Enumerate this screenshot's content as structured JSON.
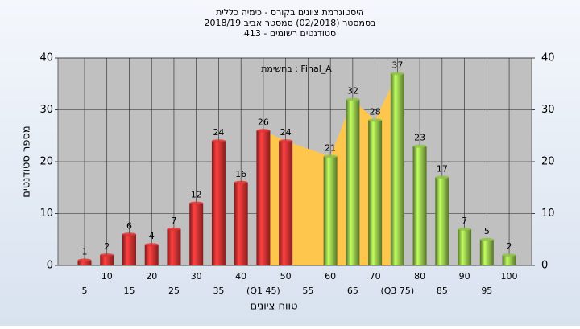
{
  "chart_data": {
    "type": "bar",
    "title": "היסטוגרמת ציונים בקורס - כימיה כללית",
    "subtitle": "בסמסטר  (02/2018)  סמסטר אביב 2018/19",
    "subtitle2": "סטודנטים רשומים - 413",
    "annotation": "בחשימת : Final_A",
    "x_label": "טווח ציונים",
    "y_label": "מספר סטודנטים",
    "categories": [
      5,
      10,
      15,
      20,
      25,
      30,
      35,
      40,
      {
        "value": 45,
        "label": "(Q1 45)"
      },
      50,
      55,
      60,
      65,
      70,
      {
        "value": 75,
        "label": "(Q3 75)"
      },
      80,
      85,
      90,
      95,
      100
    ],
    "values": [
      1,
      2,
      6,
      4,
      7,
      12,
      24,
      16,
      26,
      24,
      null,
      21,
      32,
      28,
      37,
      23,
      17,
      7,
      5,
      2
    ],
    "colors": [
      "#e03030",
      "#e03030",
      "#e03030",
      "#e03030",
      "#e03030",
      "#e03030",
      "#e03030",
      "#e03030",
      "#e03030",
      "#e03030",
      "#e03030",
      "#8fc048",
      "#8fc048",
      "#8fc048",
      "#8fc048",
      "#8fc048",
      "#8fc048",
      "#8fc048",
      "#8fc048",
      "#8fc048"
    ],
    "area_color": "#ffc64d",
    "ylim": [
      0,
      40
    ],
    "yticks": [
      0,
      10,
      20,
      30,
      40
    ],
    "grid": true
  }
}
